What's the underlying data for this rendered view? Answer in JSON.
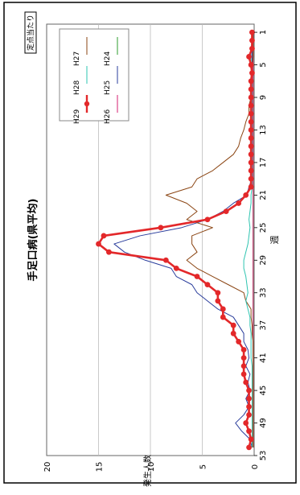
{
  "chart_data": {
    "type": "line",
    "title": "手足口病(県平均)",
    "badge": "定点当たり",
    "xlabel": "週",
    "ylabel": "発生人数",
    "ylim": [
      0,
      20
    ],
    "y_ticks": [
      "0",
      "5",
      "10",
      "15",
      "20"
    ],
    "xlim": [
      0,
      53
    ],
    "x_ticks": [
      "1",
      "5",
      "9",
      "13",
      "17",
      "21",
      "25",
      "29",
      "33",
      "37",
      "41",
      "45",
      "49",
      "53"
    ],
    "grid": true,
    "legend_position": "top-right",
    "series": [
      {
        "name": "H24",
        "color": "#2e9d2e",
        "marker": "none",
        "x": [
          1,
          3,
          5,
          7,
          9,
          11,
          13,
          15,
          17,
          19,
          21,
          23,
          25,
          27,
          29,
          31,
          33,
          35,
          37,
          39,
          41,
          43,
          45,
          47,
          49,
          51,
          52
        ],
        "y": [
          0.1,
          0.1,
          0.1,
          0.1,
          0.1,
          0.1,
          0.1,
          0.1,
          0.1,
          0.1,
          0.1,
          0.1,
          0.1,
          0.1,
          0.1,
          0.1,
          0.1,
          0.1,
          0.1,
          0.1,
          0.1,
          0.1,
          0.1,
          0.1,
          0.1,
          0.1,
          0.1
        ]
      },
      {
        "name": "H25",
        "color": "#2a3d9c",
        "marker": "none",
        "x": [
          1,
          2,
          3,
          4,
          5,
          6,
          7,
          8,
          9,
          10,
          11,
          12,
          13,
          14,
          15,
          16,
          17,
          18,
          19,
          20,
          21,
          22,
          23,
          24,
          25,
          26,
          27,
          28,
          29,
          30,
          31,
          32,
          33,
          34,
          35,
          36,
          37,
          38,
          39,
          40,
          41,
          42,
          43,
          44,
          45,
          46,
          47,
          48,
          49,
          50,
          51,
          52
        ],
        "y": [
          0.1,
          0.1,
          0.2,
          0.2,
          0.2,
          0.2,
          0.2,
          0.2,
          0.2,
          0.2,
          0.2,
          0.2,
          0.2,
          0.2,
          0.2,
          0.2,
          0.2,
          0.2,
          0.2,
          0.5,
          0.7,
          2.0,
          3.0,
          4.5,
          7.0,
          11.0,
          13.5,
          12.5,
          10.5,
          8.0,
          7.5,
          6.0,
          5.5,
          4.5,
          3.5,
          2.0,
          1.5,
          1.0,
          1.0,
          0.6,
          0.5,
          0.8,
          0.4,
          0.6,
          0.4,
          0.8,
          0.5,
          1.0,
          1.8,
          1.2,
          0.4,
          0.2
        ]
      },
      {
        "name": "H26",
        "color": "#d61f72",
        "marker": "none",
        "x": [
          1,
          3,
          5,
          7,
          9,
          11,
          13,
          15,
          17,
          19,
          21,
          23,
          25,
          27,
          29,
          31,
          33,
          35,
          37,
          39,
          41,
          43,
          45,
          47,
          49,
          51,
          52
        ],
        "y": [
          0.1,
          0.1,
          0.1,
          0.1,
          0.1,
          0.1,
          0.1,
          0.1,
          0.1,
          0.1,
          0.1,
          0.1,
          0.1,
          0.1,
          0.1,
          0.1,
          0.1,
          0.1,
          0.1,
          0.1,
          0.1,
          0.1,
          0.1,
          0.1,
          0.1,
          0.1,
          0.1
        ]
      },
      {
        "name": "H27",
        "color": "#8b4513",
        "marker": "none",
        "x": [
          1,
          2,
          3,
          4,
          5,
          6,
          7,
          8,
          9,
          10,
          11,
          12,
          13,
          14,
          15,
          16,
          17,
          18,
          19,
          20,
          21,
          22,
          23,
          24,
          25,
          26,
          27,
          28,
          29,
          30,
          31,
          32,
          33,
          34,
          35,
          36,
          37,
          38,
          39,
          40,
          41,
          42,
          43,
          44,
          45,
          46,
          47,
          48,
          49,
          50,
          51,
          52
        ],
        "y": [
          0.1,
          0.1,
          0.1,
          0.1,
          0.2,
          0.2,
          0.2,
          0.3,
          0.3,
          0.5,
          0.5,
          0.8,
          1.0,
          1.3,
          1.5,
          2.0,
          3.0,
          4.0,
          5.5,
          6.0,
          8.5,
          6.5,
          5.5,
          6.5,
          4.0,
          6.0,
          6.0,
          5.5,
          6.5,
          5.5,
          4.0,
          2.5,
          1.0,
          0.8,
          0.3,
          0.3,
          0.2,
          0.2,
          0.1,
          0.1,
          0.1,
          0.1,
          0.1,
          0.1,
          0.1,
          0.1,
          0.1,
          0.1,
          0.1,
          0.1,
          0.1,
          0.1
        ]
      },
      {
        "name": "H28",
        "color": "#2ec4b0",
        "marker": "none",
        "x": [
          1,
          2,
          3,
          4,
          5,
          6,
          7,
          8,
          9,
          10,
          11,
          12,
          13,
          14,
          15,
          16,
          17,
          18,
          19,
          20,
          21,
          22,
          23,
          24,
          25,
          26,
          27,
          28,
          29,
          30,
          31,
          32,
          33,
          34,
          35,
          36,
          37,
          38,
          39,
          40,
          41,
          42,
          43,
          44,
          45,
          46,
          47,
          48,
          49,
          50,
          51,
          52
        ],
        "y": [
          0.2,
          0.2,
          0.3,
          0.3,
          0.3,
          0.2,
          0.2,
          0.2,
          0.2,
          0.2,
          0.2,
          0.2,
          0.2,
          0.2,
          0.2,
          0.2,
          0.2,
          0.2,
          0.2,
          0.2,
          0.3,
          0.3,
          0.4,
          0.5,
          0.4,
          0.5,
          0.6,
          0.8,
          1.0,
          1.0,
          0.8,
          0.7,
          0.6,
          0.8,
          0.6,
          0.4,
          0.4,
          0.3,
          0.3,
          0.3,
          0.3,
          0.2,
          0.2,
          0.2,
          0.2,
          0.2,
          0.2,
          0.2,
          0.2,
          0.2,
          0.2,
          0.2
        ]
      },
      {
        "name": "H29",
        "color": "#e3282a",
        "marker": "circle",
        "x": [
          1,
          2,
          3,
          4,
          5,
          6,
          7,
          8,
          9,
          10,
          11,
          12,
          13,
          14,
          15,
          16,
          17,
          18,
          19,
          20,
          21,
          22,
          23,
          24,
          25,
          26,
          27,
          28,
          29,
          30,
          31,
          32,
          33,
          34,
          35,
          36,
          37,
          38,
          39,
          40,
          41,
          42,
          43,
          44,
          45,
          46,
          47,
          48,
          49,
          50,
          51,
          52
        ],
        "y": [
          0.2,
          0.2,
          0.2,
          0.5,
          0.3,
          0.2,
          0.3,
          0.3,
          0.3,
          0.3,
          0.3,
          0.3,
          0.3,
          0.3,
          0.3,
          0.3,
          0.3,
          0.3,
          0.3,
          0.3,
          0.8,
          1.5,
          2.7,
          4.5,
          9.0,
          14.5,
          15.0,
          14.0,
          8.5,
          7.5,
          5.5,
          4.5,
          3.5,
          3.5,
          3.0,
          3.0,
          2.0,
          2.0,
          1.5,
          1.0,
          1.0,
          1.0,
          1.0,
          0.8,
          0.5,
          0.5,
          0.5,
          0.5,
          0.8,
          0.5,
          0.3,
          0.5
        ]
      }
    ]
  }
}
